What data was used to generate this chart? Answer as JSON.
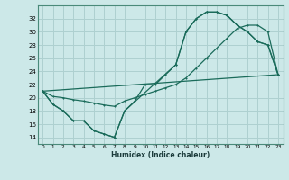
{
  "xlabel": "Humidex (Indice chaleur)",
  "bg_color": "#cce8e8",
  "line_color": "#1a6b5a",
  "grid_color": "#aed0d0",
  "xlim": [
    -0.5,
    23.5
  ],
  "ylim": [
    13,
    34
  ],
  "xticks": [
    0,
    1,
    2,
    3,
    4,
    5,
    6,
    7,
    8,
    9,
    10,
    11,
    12,
    13,
    14,
    15,
    16,
    17,
    18,
    19,
    20,
    21,
    22,
    23
  ],
  "yticks": [
    14,
    16,
    18,
    20,
    22,
    24,
    26,
    28,
    30,
    32
  ],
  "curve1_x": [
    0,
    1,
    2,
    3,
    4,
    5,
    6,
    7,
    8,
    9,
    10,
    11,
    12,
    13,
    14,
    15,
    16,
    17,
    18,
    19,
    20,
    21,
    22,
    23
  ],
  "curve1_y": [
    21,
    19,
    18,
    16.5,
    16.5,
    15,
    14.5,
    14,
    18,
    19.5,
    22,
    22,
    23.5,
    25,
    30,
    32,
    33,
    33,
    32.5,
    31,
    30,
    28.5,
    28,
    23.5
  ],
  "curve2_x": [
    0,
    1,
    2,
    3,
    4,
    5,
    6,
    7,
    8,
    13,
    14,
    15,
    16,
    17,
    18,
    19,
    20,
    21,
    22,
    23
  ],
  "curve2_y": [
    21,
    19,
    18,
    16.5,
    16.5,
    15,
    14.5,
    14,
    18,
    25,
    30,
    32,
    33,
    33,
    32.5,
    31,
    30,
    28.5,
    28,
    23.5
  ],
  "curve3_x": [
    0,
    1,
    2,
    3,
    4,
    5,
    6,
    7,
    8,
    9,
    10,
    11,
    12,
    13,
    14,
    15,
    16,
    17,
    18,
    19,
    20,
    21,
    22,
    23
  ],
  "curve3_y": [
    21,
    20.2,
    20.0,
    19.7,
    19.5,
    19.2,
    18.9,
    18.7,
    19.5,
    20,
    20.5,
    21,
    21.5,
    22,
    23,
    24.5,
    26,
    27.5,
    29,
    30.5,
    31,
    31,
    30,
    23.5
  ],
  "curve4_x": [
    0,
    23
  ],
  "curve4_y": [
    21,
    23.5
  ]
}
